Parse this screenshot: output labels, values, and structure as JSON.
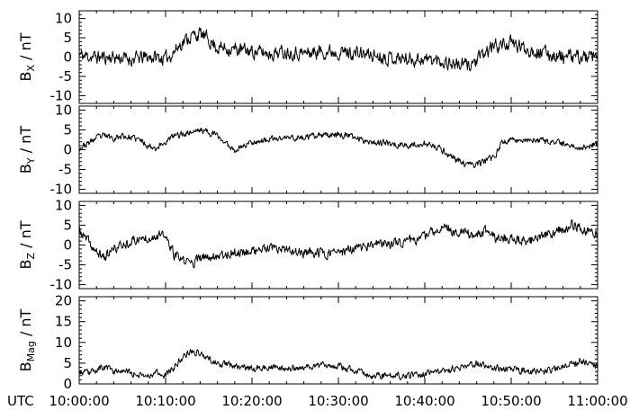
{
  "chart_data": [
    {
      "type": "line",
      "panel": "bx",
      "ylabel_main": "B",
      "ylabel_sub": "X",
      "ylabel_unit": " / nT",
      "ylim": [
        -12,
        12
      ],
      "yticks": [
        10,
        5,
        0,
        -5,
        -10
      ],
      "ytick_labels": [
        "10",
        "5",
        "0",
        "-5",
        "-10"
      ],
      "yminor_step": 1,
      "noise": 2.0,
      "seed": 11,
      "series": [
        {
          "x": [
            0,
            2,
            4,
            6,
            8,
            9,
            10,
            11,
            12,
            13,
            14,
            15,
            16,
            18,
            20,
            22,
            24,
            26,
            28,
            30,
            32,
            34,
            36,
            38,
            40,
            42,
            44,
            45,
            46,
            47,
            48,
            50,
            52,
            54,
            56,
            58,
            60
          ],
          "y": [
            0.5,
            0,
            0,
            -0.5,
            0,
            0,
            -0.5,
            1.5,
            4,
            5.5,
            6,
            4.5,
            2.5,
            2,
            1.5,
            1,
            1.5,
            1,
            1.5,
            1.5,
            1,
            0.5,
            0,
            -0.5,
            -0.5,
            -1,
            -2,
            -2,
            -1,
            1,
            3,
            3.5,
            2,
            1,
            0,
            0,
            -0.5
          ]
        }
      ]
    },
    {
      "type": "line",
      "panel": "by",
      "ylabel_main": "B",
      "ylabel_sub": "Y",
      "ylabel_unit": " / nT",
      "ylim": [
        -11,
        11
      ],
      "yticks": [
        10,
        5,
        0,
        -5,
        -10
      ],
      "ytick_labels": [
        "10",
        "5",
        "0",
        "-5",
        "-10"
      ],
      "yminor_step": 1,
      "noise": 0.9,
      "seed": 23,
      "series": [
        {
          "x": [
            0,
            1,
            2,
            3,
            4,
            5,
            6,
            7,
            8,
            9,
            10,
            11,
            12,
            13,
            14,
            15,
            16,
            17,
            18,
            19,
            20,
            22,
            24,
            26,
            28,
            30,
            32,
            34,
            36,
            38,
            40,
            42,
            43,
            44,
            45,
            46,
            47,
            48,
            49,
            50,
            52,
            54,
            56,
            58,
            60
          ],
          "y": [
            0.5,
            1.5,
            3,
            3.5,
            3,
            3.5,
            3,
            2.5,
            1,
            0.5,
            2,
            3.5,
            4,
            4.5,
            5,
            4.5,
            3.5,
            1.5,
            0,
            1,
            2,
            2.5,
            3,
            3,
            3.5,
            4,
            3,
            2,
            1.5,
            1,
            1.5,
            0,
            -1.5,
            -3,
            -4,
            -3.5,
            -3,
            -2,
            2,
            2.5,
            2.5,
            2,
            1.5,
            0.5,
            1.5
          ]
        }
      ]
    },
    {
      "type": "line",
      "panel": "bz",
      "ylabel_main": "B",
      "ylabel_sub": "Z",
      "ylabel_unit": " / nT",
      "ylim": [
        -11,
        11
      ],
      "yticks": [
        10,
        5,
        0,
        -5,
        -10
      ],
      "ytick_labels": [
        "10",
        "5",
        "0",
        "-5",
        "-10"
      ],
      "yminor_step": 1,
      "noise": 1.4,
      "seed": 37,
      "series": [
        {
          "x": [
            0,
            1,
            2,
            3,
            4,
            5,
            6,
            7,
            8,
            9,
            10,
            11,
            12,
            13,
            14,
            15,
            16,
            18,
            20,
            22,
            24,
            26,
            28,
            30,
            32,
            34,
            36,
            38,
            40,
            41,
            42,
            43,
            44,
            46,
            47,
            48,
            50,
            52,
            54,
            56,
            57,
            58,
            59,
            60
          ],
          "y": [
            3.5,
            1,
            -2,
            -3,
            -1,
            0,
            1,
            1.5,
            2,
            2.5,
            2,
            -2.5,
            -4,
            -4.5,
            -3.5,
            -3,
            -2.5,
            -2,
            -1.5,
            -1,
            -1.5,
            -2,
            -2,
            -2,
            -1,
            0,
            0.5,
            1,
            2,
            3.5,
            4.5,
            4,
            3,
            2.5,
            3.5,
            2,
            1.5,
            1,
            2.5,
            4,
            5,
            4.5,
            3,
            3
          ]
        }
      ]
    },
    {
      "type": "line",
      "panel": "bmag",
      "ylabel_main": "B",
      "ylabel_sub": "Mag",
      "ylabel_unit": " / nT",
      "ylim": [
        0,
        21
      ],
      "yticks": [
        20,
        15,
        10,
        5,
        0
      ],
      "ytick_labels": [
        "20",
        "15",
        "10",
        "5",
        "0"
      ],
      "yminor_step": 1,
      "noise": 0.9,
      "seed": 53,
      "clip_min": 0.3,
      "series": [
        {
          "x": [
            0,
            1,
            2,
            3,
            4,
            5,
            6,
            7,
            8,
            9,
            10,
            11,
            12,
            13,
            14,
            15,
            16,
            18,
            20,
            22,
            24,
            26,
            28,
            30,
            32,
            34,
            36,
            38,
            40,
            42,
            44,
            46,
            48,
            50,
            52,
            54,
            56,
            58,
            60
          ],
          "y": [
            3,
            2.5,
            3.5,
            4,
            3,
            3.5,
            2.5,
            2.5,
            2,
            3,
            2,
            4,
            6.5,
            8,
            7.5,
            6,
            5,
            4.5,
            3.5,
            4,
            3.5,
            4,
            4.5,
            4.5,
            3,
            2,
            2,
            2,
            2.5,
            3,
            4,
            5,
            4,
            3.5,
            3,
            3,
            4,
            5.5,
            4
          ]
        }
      ]
    }
  ],
  "xaxis": {
    "name": "UTC",
    "xlim": [
      0,
      60
    ],
    "ticks": [
      0,
      10,
      20,
      30,
      40,
      50,
      60
    ],
    "tick_labels": [
      "10:00:00",
      "10:10:00",
      "10:20:00",
      "10:30:00",
      "10:40:00",
      "10:50:00",
      "11:00:00"
    ],
    "minor_step": 2
  }
}
